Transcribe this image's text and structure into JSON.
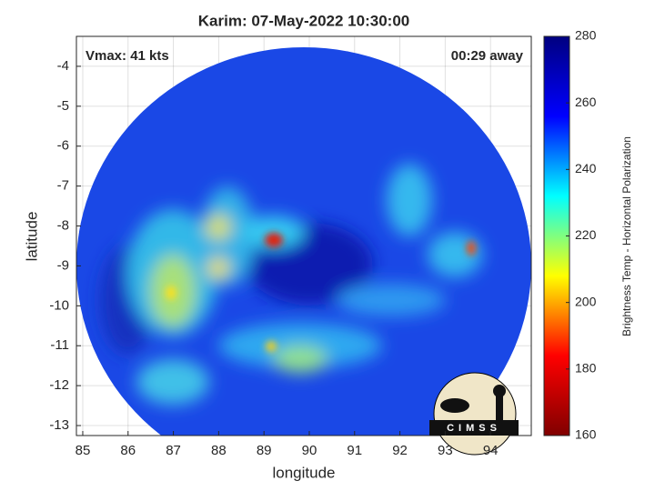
{
  "chart_data": {
    "type": "heatmap",
    "title": "Karim: 07-May-2022 10:30:00",
    "annotations": [
      "Vmax: 41 kts",
      "00:29 away"
    ],
    "x_label": "longitude",
    "y_label": "latitude",
    "xlim": [
      84.86,
      94.9
    ],
    "xticks": [
      85,
      86,
      87,
      88,
      89,
      90,
      91,
      92,
      93,
      94
    ],
    "ylim": [
      -13.25,
      -3.25
    ],
    "yticks": [
      -4,
      -5,
      -6,
      -7,
      -8,
      -9,
      -10,
      -11,
      -12,
      -13
    ],
    "grid": true,
    "colorbar": {
      "label": "Brightness Temp - Horizontal Polarization",
      "lim": [
        160,
        280
      ],
      "ticks": [
        160,
        180,
        200,
        220,
        240,
        260,
        280
      ],
      "colormap": [
        "#800000",
        "#ff0000",
        "#ffff00",
        "#00ffff",
        "#0000ff",
        "#000080"
      ]
    },
    "logo": "CIMSS"
  }
}
